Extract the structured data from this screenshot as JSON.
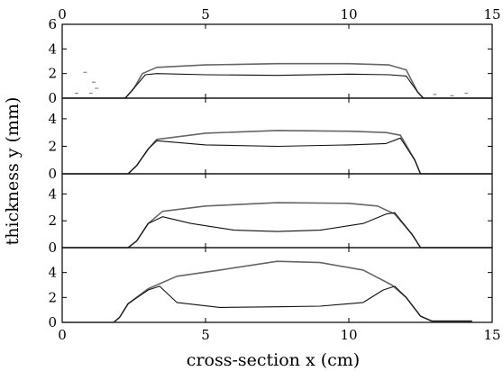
{
  "chart_data": {
    "type": "line",
    "xlabel": "cross-section x (cm)",
    "ylabel": "thickness y (mm)",
    "xlim": [
      0,
      15
    ],
    "x_ticks": [
      0,
      5,
      10,
      15
    ],
    "x_ticks_top": [
      0,
      5,
      10,
      15
    ],
    "grid": false,
    "legend": "none",
    "colors": {
      "upper": "#666666",
      "lower": "#111111"
    },
    "panels": [
      {
        "ylim": [
          0,
          6
        ],
        "y_ticks": [
          0,
          2,
          4,
          6
        ],
        "series": [
          {
            "role": "upper",
            "x": [
              0,
              2.2,
              2.5,
              2.8,
              3.3,
              5,
              7.5,
              10,
              11.4,
              12.0,
              12.4,
              12.6,
              15
            ],
            "y": [
              0,
              0,
              0.8,
              2.0,
              2.5,
              2.7,
              2.8,
              2.8,
              2.7,
              2.3,
              0.5,
              0,
              0
            ]
          },
          {
            "role": "lower",
            "x": [
              0,
              2.2,
              2.5,
              2.9,
              3.3,
              5,
              7.5,
              10,
              11.4,
              12.0,
              12.4,
              12.6,
              15
            ],
            "y": [
              0,
              0,
              0.8,
              1.9,
              2.0,
              1.9,
              1.85,
              1.95,
              1.9,
              1.8,
              0.5,
              0,
              0
            ]
          },
          {
            "role": "scatter",
            "x": [
              0.8,
              1.1,
              1.2,
              1.0,
              0.5,
              13.0,
              13.6,
              14.1
            ],
            "y": [
              2.1,
              1.3,
              0.8,
              0.4,
              0.4,
              0.3,
              0.2,
              0.4
            ]
          }
        ]
      },
      {
        "ylim": [
          0,
          5.5
        ],
        "y_ticks": [
          0,
          2,
          4
        ],
        "series": [
          {
            "role": "upper",
            "x": [
              0,
              2.3,
              2.6,
              3.0,
              3.3,
              5,
              7.5,
              10,
              11.3,
              11.8,
              12.3,
              12.5,
              15
            ],
            "y": [
              0,
              0,
              0.6,
              1.8,
              2.5,
              2.95,
              3.15,
              3.1,
              3.0,
              2.8,
              1.0,
              0,
              0
            ]
          },
          {
            "role": "lower",
            "x": [
              0,
              2.3,
              2.6,
              3.0,
              3.3,
              5,
              7.5,
              10,
              11.3,
              11.8,
              12.3,
              12.5,
              15
            ],
            "y": [
              0,
              0,
              0.6,
              1.8,
              2.4,
              2.1,
              2.0,
              2.1,
              2.2,
              2.6,
              1.0,
              0,
              0
            ]
          }
        ]
      },
      {
        "ylim": [
          0,
          5.5
        ],
        "y_ticks": [
          0,
          2,
          4
        ],
        "series": [
          {
            "role": "upper",
            "x": [
              0,
              2.3,
              2.6,
              3.0,
              3.5,
              5,
              7.5,
              10,
              11.0,
              11.6,
              12.2,
              12.5,
              15
            ],
            "y": [
              0,
              0,
              0.5,
              1.8,
              2.7,
              3.1,
              3.35,
              3.3,
              3.1,
              2.5,
              1.0,
              0,
              0
            ]
          },
          {
            "role": "lower",
            "x": [
              0,
              2.3,
              2.6,
              3.0,
              3.5,
              4.5,
              6,
              7.5,
              9,
              10.5,
              11.3,
              11.6,
              12.2,
              12.5,
              15
            ],
            "y": [
              0,
              0,
              0.5,
              1.8,
              2.3,
              1.8,
              1.3,
              1.2,
              1.3,
              1.8,
              2.5,
              2.6,
              1.0,
              0,
              0
            ]
          }
        ]
      },
      {
        "ylim": [
          0,
          6
        ],
        "y_ticks": [
          0,
          2,
          4
        ],
        "series": [
          {
            "role": "upper",
            "x": [
              0,
              1.8,
              2.0,
              2.3,
              3.0,
              4,
              5.5,
              7.5,
              9,
              10.5,
              11.5,
              12.0,
              12.5,
              12.9,
              14.3
            ],
            "y": [
              0,
              0,
              0.4,
              1.5,
              2.7,
              3.7,
              4.2,
              4.9,
              4.8,
              4.2,
              3.0,
              2.0,
              0.5,
              0.1,
              0.1
            ]
          },
          {
            "role": "lower",
            "x": [
              0,
              1.8,
              2.0,
              2.3,
              3.0,
              3.4,
              4.0,
              5.5,
              7.5,
              9,
              10.5,
              11.2,
              11.6,
              12.0,
              12.5,
              12.9,
              14.3
            ],
            "y": [
              0,
              0,
              0.4,
              1.5,
              2.6,
              2.9,
              1.6,
              1.2,
              1.25,
              1.3,
              1.6,
              2.6,
              2.9,
              2.0,
              0.5,
              0.1,
              0.1
            ]
          }
        ]
      }
    ]
  }
}
